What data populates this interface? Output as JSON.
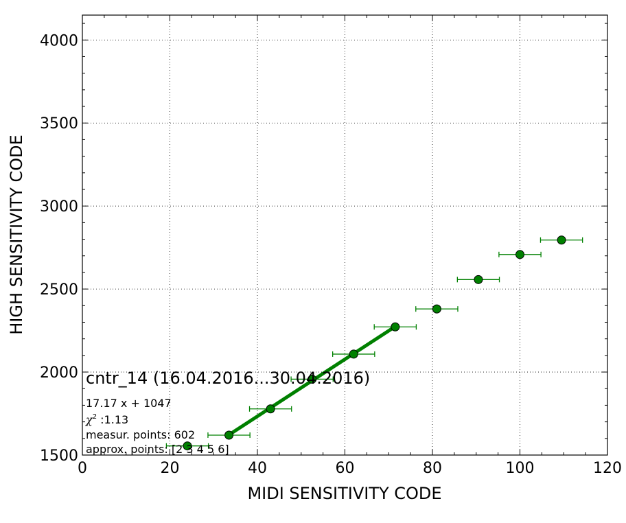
{
  "chart_data": {
    "type": "scatter",
    "title": "",
    "xlabel": "MIDI SENSITIVITY CODE",
    "ylabel": "HIGH SENSITIVITY CODE",
    "xlim": [
      0,
      120
    ],
    "ylim": [
      1500,
      4150
    ],
    "x_ticks": [
      0,
      20,
      40,
      60,
      80,
      100,
      120
    ],
    "y_ticks": [
      1500,
      2000,
      2500,
      3000,
      3500,
      4000
    ],
    "grid": true,
    "series": [
      {
        "type": "errorbar",
        "color": "#008000",
        "x": [
          24,
          33.5,
          43,
          52.5,
          62,
          71.5,
          81,
          90.5,
          100,
          109.5
        ],
        "y": [
          1555,
          1620,
          1778,
          1957,
          2108,
          2272,
          2380,
          2557,
          2708,
          2795
        ],
        "xerr": [
          4.8,
          4.8,
          4.8,
          4.8,
          4.8,
          4.8,
          4.8,
          4.8,
          4.8,
          4.8
        ]
      },
      {
        "type": "line",
        "color": "#008000",
        "x": [
          33.5,
          71.5
        ],
        "y": [
          1622,
          2274
        ]
      }
    ],
    "annotations": {
      "title": "cntr_14 (16.04.2016...30.04.2016)",
      "fit": "17.17 x + 1047",
      "chi2_symbol": "χ",
      "chi2_exp": "2",
      "chi2_value": " :1.13",
      "measur": "measur. points: 602",
      "approx": "approx. points: [2 3 4 5 6]"
    }
  }
}
